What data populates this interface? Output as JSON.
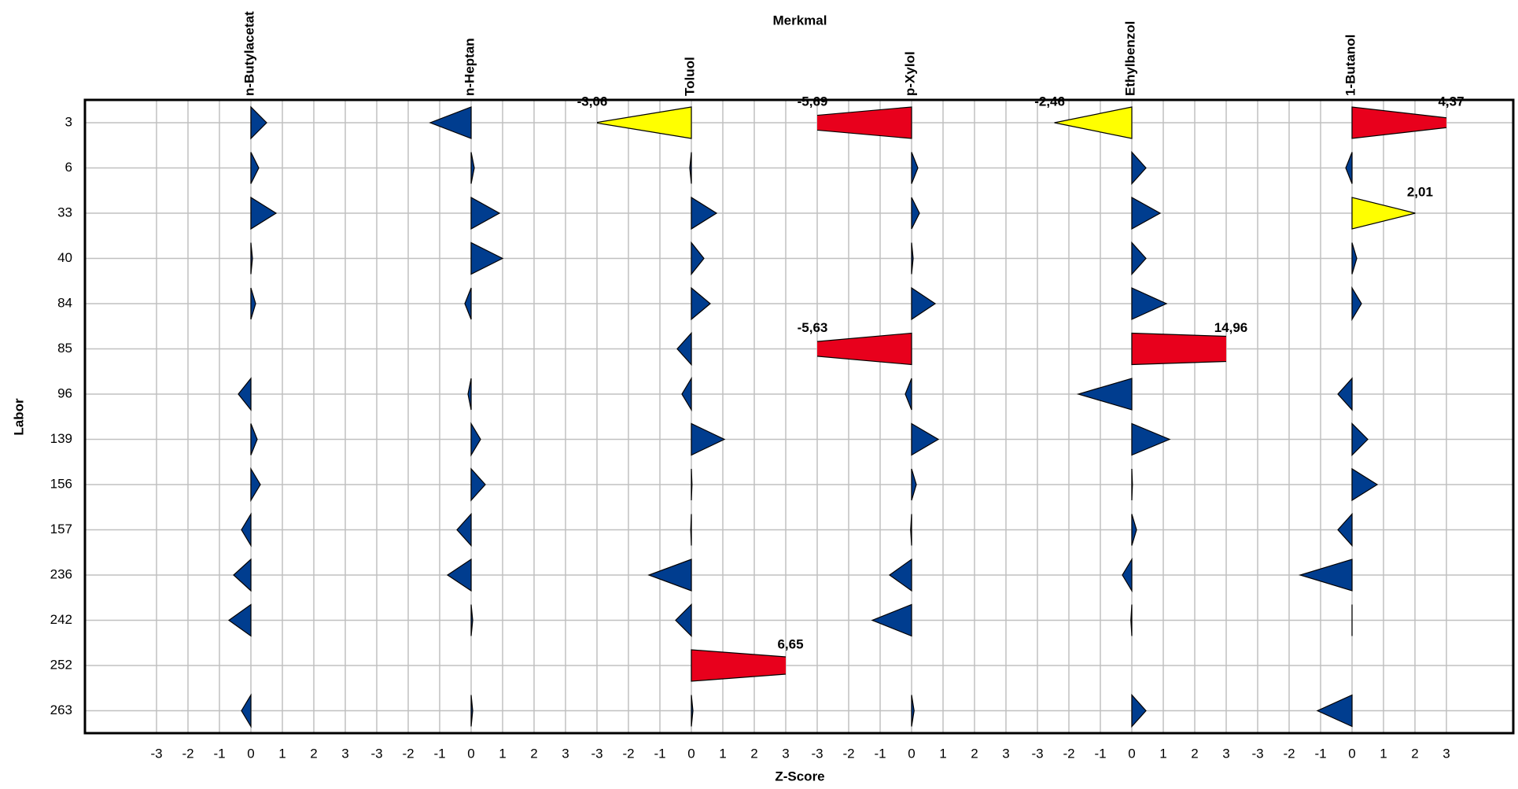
{
  "chart_data": {
    "type": "bar",
    "group_label": "Merkmal",
    "xlabel": "Z-Score",
    "ylabel": "Labor",
    "categories": [
      "3",
      "6",
      "33",
      "40",
      "84",
      "85",
      "96",
      "139",
      "156",
      "157",
      "236",
      "242",
      "252",
      "263"
    ],
    "xlim": [
      -3,
      3
    ],
    "xticks": [
      -3,
      -2,
      -1,
      0,
      1,
      2,
      3
    ],
    "grid": true,
    "series": [
      {
        "name": "n-Butylacetat",
        "values": [
          0.5,
          0.25,
          0.8,
          0.05,
          0.15,
          null,
          -0.4,
          0.2,
          0.3,
          -0.3,
          -0.55,
          -0.7,
          null,
          -0.3
        ],
        "colors": [
          "#003d8f",
          "#003d8f",
          "#003d8f",
          "#003d8f",
          "#003d8f",
          "#003d8f",
          "#003d8f",
          "#003d8f",
          "#003d8f",
          "#003d8f",
          "#003d8f",
          "#003d8f",
          "#003d8f",
          "#003d8f"
        ],
        "value_labels": [
          null,
          null,
          null,
          null,
          null,
          null,
          null,
          null,
          null,
          null,
          null,
          null,
          null,
          null
        ]
      },
      {
        "name": "n-Heptan",
        "values": [
          -1.3,
          0.1,
          0.9,
          1.0,
          -0.2,
          null,
          -0.1,
          0.3,
          0.45,
          -0.45,
          -0.75,
          0.05,
          null,
          0.05
        ],
        "colors": [
          "#003d8f",
          "#003d8f",
          "#003d8f",
          "#003d8f",
          "#003d8f",
          "#003d8f",
          "#003d8f",
          "#003d8f",
          "#003d8f",
          "#003d8f",
          "#003d8f",
          "#003d8f",
          "#003d8f",
          "#003d8f"
        ],
        "value_labels": [
          null,
          null,
          null,
          null,
          null,
          null,
          null,
          null,
          null,
          null,
          null,
          null,
          null,
          null
        ]
      },
      {
        "name": "Toluol",
        "values": [
          -3.06,
          -0.05,
          0.8,
          0.4,
          0.6,
          -0.45,
          -0.3,
          1.05,
          0.02,
          -0.02,
          -1.35,
          -0.5,
          6.65,
          0.05
        ],
        "colors": [
          "#ffff00",
          "#003d8f",
          "#003d8f",
          "#003d8f",
          "#003d8f",
          "#003d8f",
          "#003d8f",
          "#003d8f",
          "#003d8f",
          "#003d8f",
          "#003d8f",
          "#003d8f",
          "#e8001c",
          "#003d8f"
        ],
        "value_labels": [
          "-3,06",
          null,
          null,
          null,
          null,
          null,
          null,
          null,
          null,
          null,
          null,
          null,
          "6,65",
          null
        ]
      },
      {
        "name": "p-Xylol",
        "values": [
          -5.69,
          0.2,
          0.25,
          0.05,
          0.75,
          -5.63,
          -0.2,
          0.85,
          0.15,
          -0.03,
          -0.7,
          -1.25,
          null,
          0.08
        ],
        "colors": [
          "#e8001c",
          "#003d8f",
          "#003d8f",
          "#003d8f",
          "#003d8f",
          "#e8001c",
          "#003d8f",
          "#003d8f",
          "#003d8f",
          "#003d8f",
          "#003d8f",
          "#003d8f",
          "#003d8f",
          "#003d8f"
        ],
        "value_labels": [
          "-5,69",
          null,
          null,
          null,
          null,
          "-5,63",
          null,
          null,
          null,
          null,
          null,
          null,
          null,
          null
        ]
      },
      {
        "name": "Ethylbenzol",
        "values": [
          -2.46,
          0.45,
          0.9,
          0.45,
          1.1,
          14.96,
          -1.7,
          1.2,
          0.02,
          0.15,
          -0.3,
          -0.03,
          null,
          0.45
        ],
        "colors": [
          "#ffff00",
          "#003d8f",
          "#003d8f",
          "#003d8f",
          "#003d8f",
          "#e8001c",
          "#003d8f",
          "#003d8f",
          "#003d8f",
          "#003d8f",
          "#003d8f",
          "#003d8f",
          "#003d8f",
          "#003d8f"
        ],
        "value_labels": [
          "-2,46",
          null,
          null,
          null,
          null,
          "14,96",
          null,
          null,
          null,
          null,
          null,
          null,
          null,
          null
        ]
      },
      {
        "name": "1-Butanol",
        "values": [
          4.37,
          -0.2,
          2.01,
          0.15,
          0.3,
          null,
          -0.45,
          0.5,
          0.8,
          -0.45,
          -1.65,
          0.0,
          null,
          -1.1
        ],
        "colors": [
          "#e8001c",
          "#003d8f",
          "#ffff00",
          "#003d8f",
          "#003d8f",
          "#003d8f",
          "#003d8f",
          "#003d8f",
          "#003d8f",
          "#003d8f",
          "#003d8f",
          "#003d8f",
          "#003d8f",
          "#003d8f"
        ],
        "value_labels": [
          "4,37",
          null,
          "2,01",
          null,
          null,
          null,
          null,
          null,
          null,
          null,
          null,
          null,
          null,
          null
        ]
      }
    ]
  }
}
